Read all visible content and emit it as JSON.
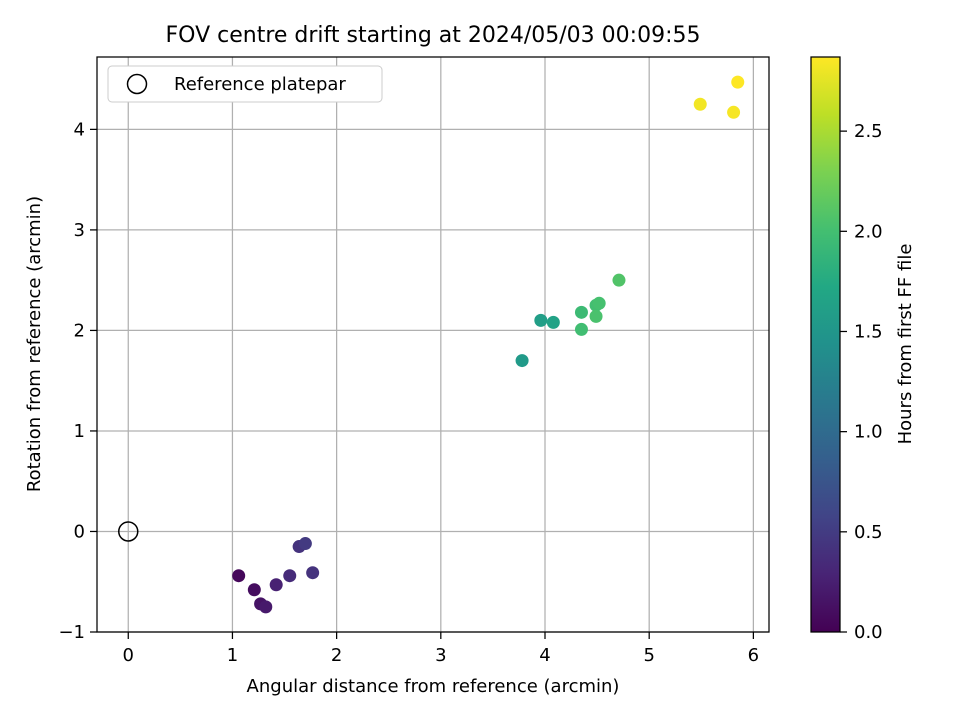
{
  "chart_data": {
    "type": "scatter",
    "title": "FOV centre drift starting at 2024/05/03 00:09:55",
    "xlabel": "Angular distance from reference (arcmin)",
    "ylabel": "Rotation from reference (arcmin)",
    "xlim": [
      -0.3,
      6.15
    ],
    "ylim": [
      -1.0,
      4.72
    ],
    "xticks": [
      0,
      1,
      2,
      3,
      4,
      5,
      6
    ],
    "yticks": [
      -1,
      0,
      1,
      2,
      3,
      4
    ],
    "grid": true,
    "legend": {
      "placement": "top-left",
      "entries": [
        {
          "label": "Reference platepar",
          "marker": "open-circle",
          "color": "#000000"
        }
      ]
    },
    "reference_point": {
      "x": 0,
      "y": 0
    },
    "colorbar": {
      "label": "Hours from first FF file",
      "colormap": "viridis",
      "range": [
        0.0,
        2.87
      ],
      "ticks": [
        0.0,
        0.5,
        1.0,
        1.5,
        2.0,
        2.5
      ],
      "tick_labels": [
        "0.0",
        "0.5",
        "1.0",
        "1.5",
        "2.0",
        "2.5"
      ]
    },
    "points": [
      {
        "x": 1.06,
        "y": -0.44,
        "c": 0.05
      },
      {
        "x": 1.21,
        "y": -0.58,
        "c": 0.1
      },
      {
        "x": 1.27,
        "y": -0.72,
        "c": 0.15
      },
      {
        "x": 1.32,
        "y": -0.75,
        "c": 0.2
      },
      {
        "x": 1.42,
        "y": -0.53,
        "c": 0.27
      },
      {
        "x": 1.55,
        "y": -0.44,
        "c": 0.35
      },
      {
        "x": 1.64,
        "y": -0.15,
        "c": 0.42
      },
      {
        "x": 1.7,
        "y": -0.12,
        "c": 0.48
      },
      {
        "x": 1.77,
        "y": -0.41,
        "c": 0.42
      },
      {
        "x": 3.78,
        "y": 1.7,
        "c": 1.55
      },
      {
        "x": 3.96,
        "y": 2.1,
        "c": 1.6
      },
      {
        "x": 4.08,
        "y": 2.08,
        "c": 1.65
      },
      {
        "x": 4.35,
        "y": 2.18,
        "c": 1.95
      },
      {
        "x": 4.35,
        "y": 2.01,
        "c": 1.98
      },
      {
        "x": 4.49,
        "y": 2.25,
        "c": 2.0
      },
      {
        "x": 4.52,
        "y": 2.27,
        "c": 2.02
      },
      {
        "x": 4.49,
        "y": 2.14,
        "c": 2.04
      },
      {
        "x": 4.71,
        "y": 2.5,
        "c": 2.08
      },
      {
        "x": 5.49,
        "y": 4.25,
        "c": 2.82
      },
      {
        "x": 5.81,
        "y": 4.17,
        "c": 2.84
      },
      {
        "x": 5.85,
        "y": 4.47,
        "c": 2.87
      }
    ]
  }
}
